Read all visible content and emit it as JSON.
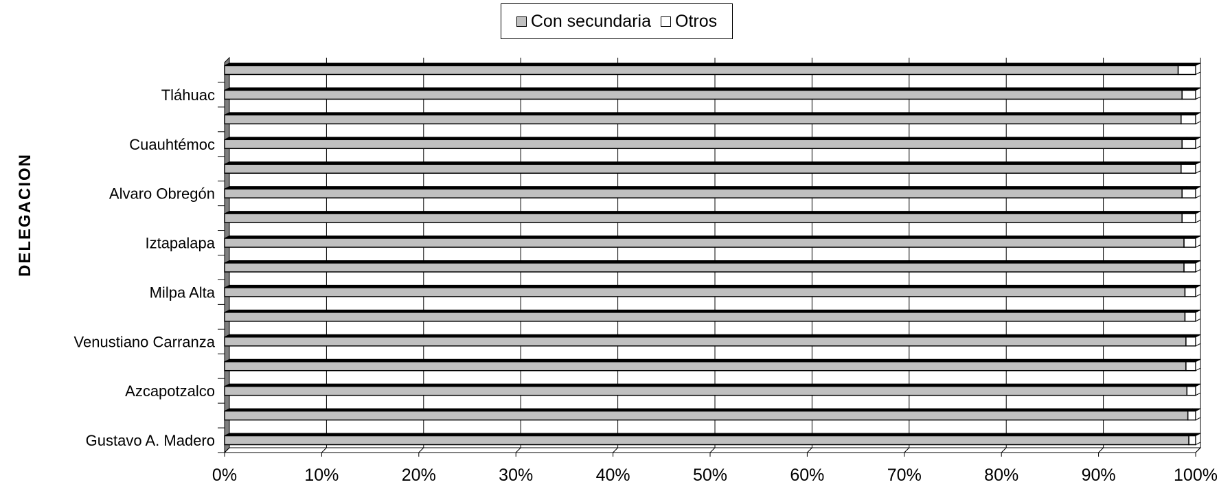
{
  "chart_data": {
    "type": "bar",
    "orientation": "horizontal",
    "stacked": "percent",
    "ylabel": "DELEGACION",
    "xlim": [
      0,
      100
    ],
    "x_ticks": [
      "0%",
      "10%",
      "20%",
      "30%",
      "40%",
      "50%",
      "60%",
      "70%",
      "80%",
      "90%",
      "100%"
    ],
    "categories": [
      "Gustavo A. Madero",
      "",
      "Azcapotzalco",
      "",
      "Venustiano Carranza",
      "",
      "Milpa Alta",
      "",
      "Iztapalapa",
      "",
      "Alvaro Obregón",
      "",
      "Cuauhtémoc",
      "",
      "Tláhuac",
      ""
    ],
    "series": [
      {
        "name": "Con secundaria",
        "color": "#c0c0c0",
        "values": [
          99.3,
          99.2,
          99.1,
          99.0,
          99.0,
          98.9,
          98.9,
          98.8,
          98.8,
          98.6,
          98.6,
          98.5,
          98.6,
          98.5,
          98.6,
          98.2
        ]
      },
      {
        "name": "Otros",
        "color": "#ffffff",
        "values": [
          0.7,
          0.8,
          0.9,
          1.0,
          1.0,
          1.1,
          1.1,
          1.2,
          1.2,
          1.4,
          1.4,
          1.5,
          1.4,
          1.5,
          1.4,
          1.8
        ]
      }
    ],
    "legend_position": "top-center",
    "grid": true
  }
}
